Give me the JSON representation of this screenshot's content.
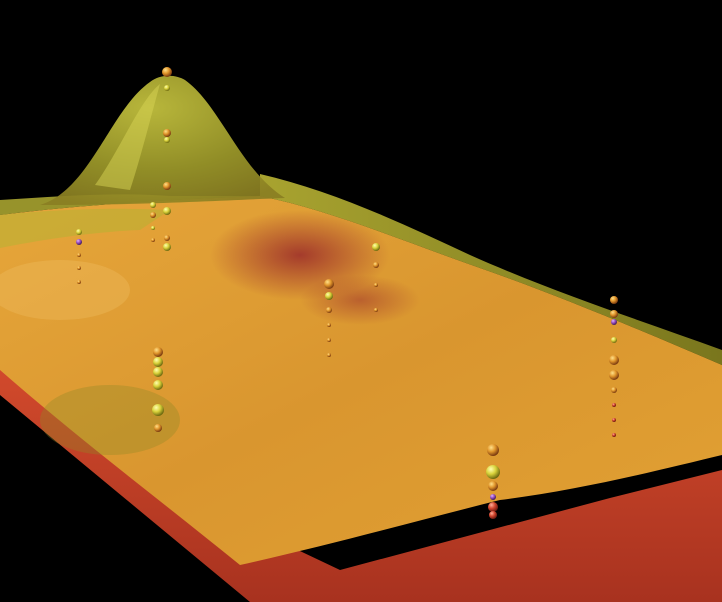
{
  "scene": {
    "description_visible_text": "",
    "colors": {
      "background": "#000000",
      "bottom_slab": "#C9452B",
      "bottom_slab_dark": "#9E2F1F",
      "main_surface": "#D9962F",
      "main_surface_light": "#E8AE3A",
      "upper_surface": "#B9B332",
      "upper_surface_dark": "#8E8A1E",
      "red_shading": "#A3322A",
      "sphere_orange": "#E0952A",
      "sphere_yellow": "#D9D23A",
      "sphere_purple": "#9A4FC0",
      "sphere_red": "#D2452E"
    },
    "borehole_count": 8
  }
}
